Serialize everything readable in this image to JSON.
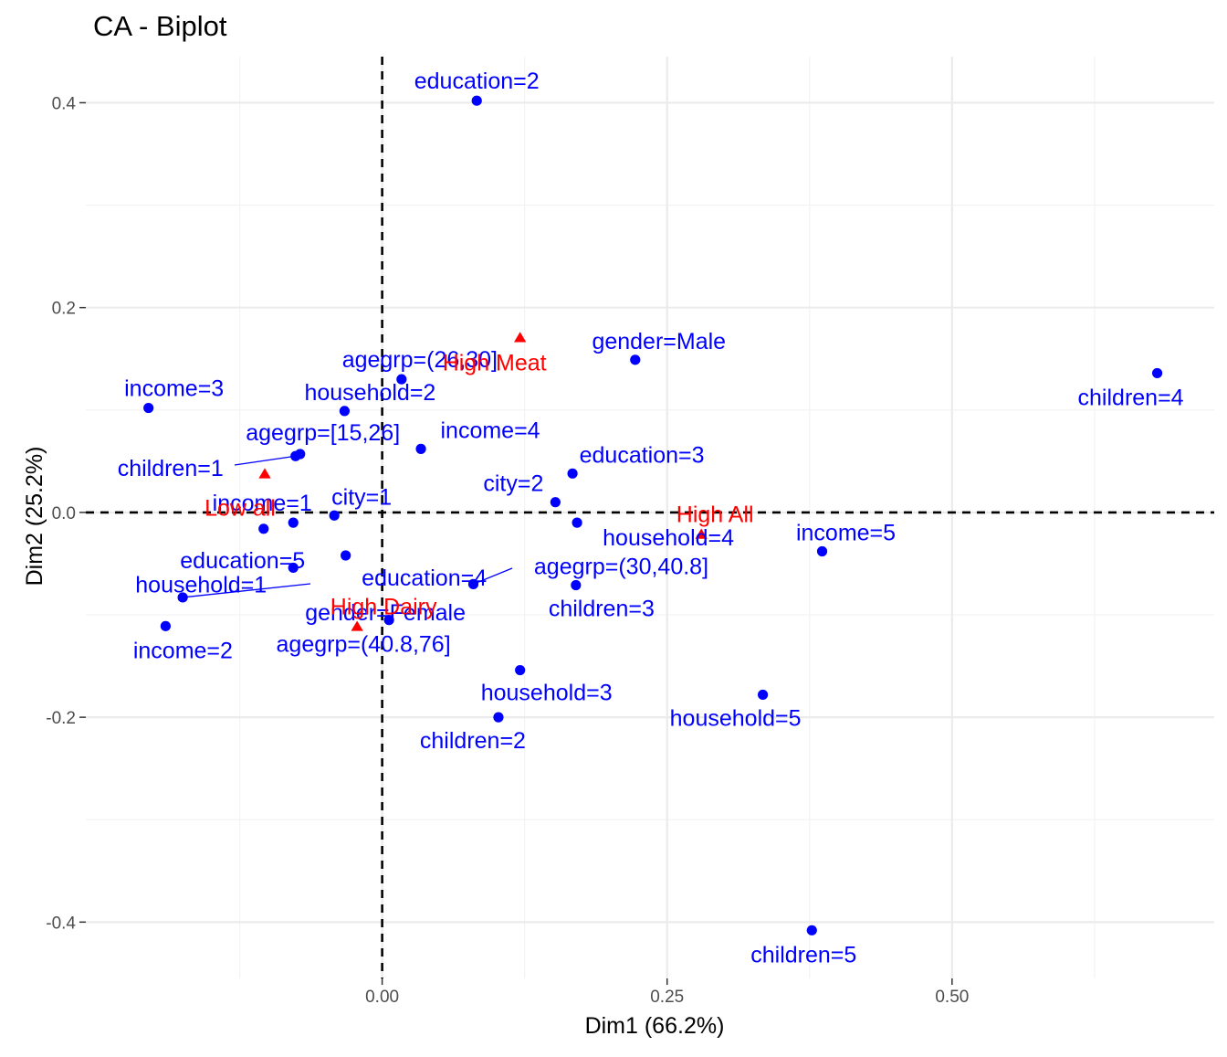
{
  "chart_data": {
    "type": "scatter",
    "title": "CA - Biplot",
    "xlabel": "Dim1 (66.2%)",
    "ylabel": "Dim2 (25.2%)",
    "xlim": [
      -0.26,
      0.73
    ],
    "ylim": [
      -0.455,
      0.445
    ],
    "x_ticks": [
      0.0,
      0.25,
      0.5
    ],
    "x_tick_labels": [
      "0.00",
      "0.25",
      "0.50"
    ],
    "y_ticks": [
      -0.4,
      -0.2,
      0.0,
      0.2,
      0.4
    ],
    "y_tick_labels": [
      "-0.4",
      "-0.2",
      "0.0",
      "0.2",
      "0.4"
    ],
    "grid": true,
    "reference_lines": {
      "x": 0,
      "y": 0,
      "style": "dashed"
    },
    "series": [
      {
        "marker": "circle",
        "color": "#0000ff",
        "points": [
          {
            "label": "education=2",
            "x": 0.083,
            "y": 0.402
          },
          {
            "label": "gender=Male",
            "x": 0.222,
            "y": 0.149
          },
          {
            "label": "children=4",
            "x": 0.68,
            "y": 0.136
          },
          {
            "label": "agegrp=(26,30]",
            "x": 0.017,
            "y": 0.13
          },
          {
            "label": "income=3",
            "x": -0.205,
            "y": 0.102
          },
          {
            "label": "household=2",
            "x": -0.033,
            "y": 0.099
          },
          {
            "label": "income=4",
            "x": 0.034,
            "y": 0.062
          },
          {
            "label": "agegrp=[15,26]",
            "x": -0.072,
            "y": 0.057
          },
          {
            "label": "children=1",
            "x": -0.076,
            "y": 0.055
          },
          {
            "label": "education=3",
            "x": 0.167,
            "y": 0.038
          },
          {
            "label": "city=2",
            "x": 0.152,
            "y": 0.01
          },
          {
            "label": "city=1",
            "x": -0.042,
            "y": -0.003
          },
          {
            "label": "household=4",
            "x": 0.171,
            "y": -0.01
          },
          {
            "label": "income=1",
            "x": -0.078,
            "y": -0.01
          },
          {
            "label": "education=5",
            "x": -0.104,
            "y": -0.016
          },
          {
            "label": "income=5",
            "x": 0.386,
            "y": -0.038
          },
          {
            "label": "education=4",
            "x": -0.032,
            "y": -0.042
          },
          {
            "label": "household=1",
            "x": -0.078,
            "y": -0.054
          },
          {
            "label": "agegrp=(30,40.8]",
            "x": 0.08,
            "y": -0.07
          },
          {
            "label": "children=3",
            "x": 0.17,
            "y": -0.071
          },
          {
            "label": "gender=Female",
            "x": -0.175,
            "y": -0.083
          },
          {
            "label": "agegrp=(40.8,76]",
            "x": 0.006,
            "y": -0.105
          },
          {
            "label": "income=2",
            "x": -0.19,
            "y": -0.111
          },
          {
            "label": "household=3",
            "x": 0.121,
            "y": -0.154
          },
          {
            "label": "household=5",
            "x": 0.334,
            "y": -0.178
          },
          {
            "label": "children=2",
            "x": 0.102,
            "y": -0.2
          },
          {
            "label": "children=5",
            "x": 0.377,
            "y": -0.408
          }
        ]
      },
      {
        "marker": "triangle",
        "color": "#ff0000",
        "points": [
          {
            "label": "High Meat",
            "x": 0.121,
            "y": 0.17
          },
          {
            "label": "Low all",
            "x": -0.103,
            "y": 0.037
          },
          {
            "label": "High All",
            "x": 0.28,
            "y": -0.022
          },
          {
            "label": "High Dairy",
            "x": -0.022,
            "y": -0.112
          }
        ]
      }
    ]
  }
}
